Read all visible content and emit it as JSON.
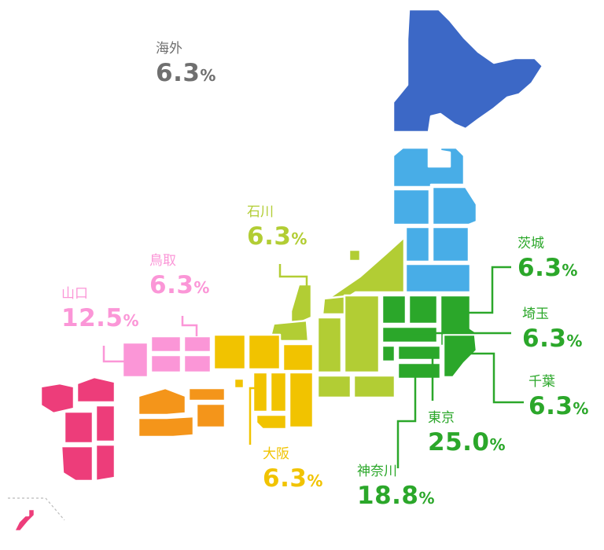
{
  "colors": {
    "overseas": "#6f6f6f",
    "hokkaido": "#3c68c6",
    "tohoku": "#48ade7",
    "kanto": "#2ba72a",
    "chubu": "#b2cd34",
    "kinki": "#f1c300",
    "chugoku": "#fb96d7",
    "shikoku": "#f4951a",
    "kyushu": "#ed3d7a"
  },
  "labels": {
    "overseas": {
      "name": "海外",
      "value": "6.3",
      "unit": "%"
    },
    "ishikawa": {
      "name": "石川",
      "value": "6.3",
      "unit": "%"
    },
    "tottori": {
      "name": "鳥取",
      "value": "6.3",
      "unit": "%"
    },
    "yamaguchi": {
      "name": "山口",
      "value": "12.5",
      "unit": "%"
    },
    "ibaraki": {
      "name": "茨城",
      "value": "6.3",
      "unit": "%"
    },
    "saitama": {
      "name": "埼玉",
      "value": "6.3",
      "unit": "%"
    },
    "chiba": {
      "name": "千葉",
      "value": "6.3",
      "unit": "%"
    },
    "tokyo": {
      "name": "東京",
      "value": "25.0",
      "unit": "%"
    },
    "kanagawa": {
      "name": "神奈川",
      "value": "18.8",
      "unit": "%"
    },
    "osaka": {
      "name": "大阪",
      "value": "6.3",
      "unit": "%"
    }
  }
}
